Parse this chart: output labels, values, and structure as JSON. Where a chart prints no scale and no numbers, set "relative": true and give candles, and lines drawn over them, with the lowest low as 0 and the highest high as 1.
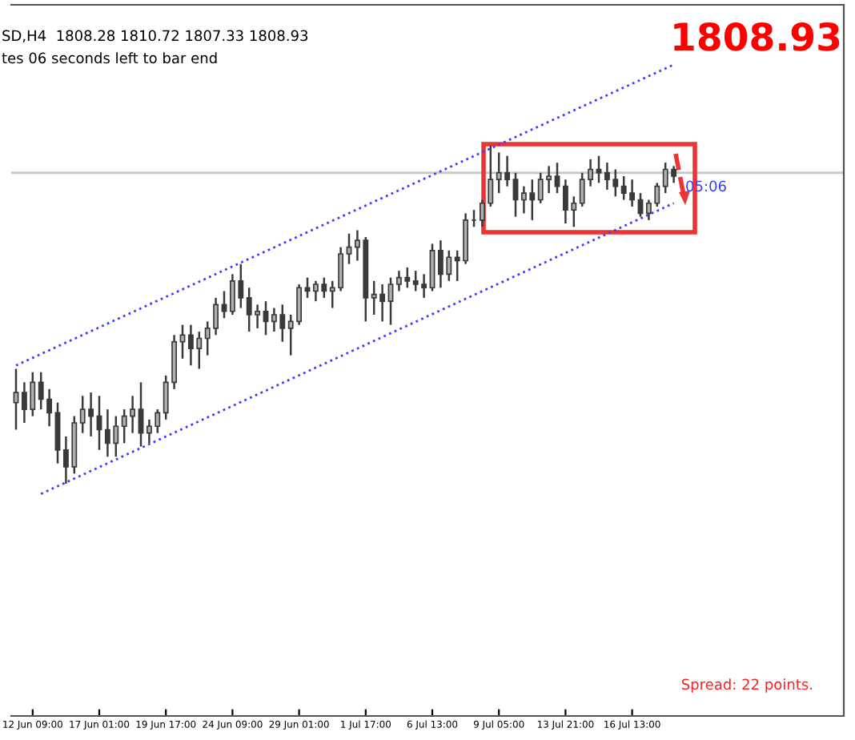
{
  "chart_data": {
    "type": "candlestick",
    "relative": true,
    "color": "#3a3a3a",
    "categories": [
      null,
      null,
      "12 Jun 09:00",
      null,
      null,
      null,
      null,
      null,
      null,
      null,
      "17 Jun 01:00",
      null,
      null,
      null,
      null,
      null,
      null,
      null,
      "19 Jun 17:00",
      null,
      null,
      null,
      null,
      null,
      null,
      null,
      "24 Jun 09:00",
      null,
      null,
      null,
      null,
      null,
      null,
      null,
      "29 Jun 01:00",
      null,
      null,
      null,
      null,
      null,
      null,
      null,
      "1 Jul 17:00",
      null,
      null,
      null,
      null,
      null,
      null,
      null,
      "6 Jul 13:00",
      null,
      null,
      null,
      null,
      null,
      null,
      null,
      "9 Jul 05:00",
      null,
      null,
      null,
      null,
      null,
      null,
      null,
      "13 Jul 21:00",
      null,
      null,
      null,
      null,
      null,
      null,
      null,
      "16 Jul 13:00",
      null,
      null,
      null,
      null,
      null
    ],
    "ohlc": [
      [
        0.24,
        0.34,
        0.16,
        0.27
      ],
      [
        0.27,
        0.3,
        0.18,
        0.22
      ],
      [
        0.22,
        0.33,
        0.2,
        0.3
      ],
      [
        0.3,
        0.33,
        0.22,
        0.25
      ],
      [
        0.25,
        0.28,
        0.17,
        0.21
      ],
      [
        0.21,
        0.24,
        0.06,
        0.1
      ],
      [
        0.1,
        0.14,
        0.0,
        0.05
      ],
      [
        0.05,
        0.2,
        0.03,
        0.18
      ],
      [
        0.18,
        0.26,
        0.15,
        0.22
      ],
      [
        0.22,
        0.27,
        0.14,
        0.2
      ],
      [
        0.2,
        0.26,
        0.1,
        0.16
      ],
      [
        0.16,
        0.22,
        0.08,
        0.12
      ],
      [
        0.12,
        0.2,
        0.08,
        0.17
      ],
      [
        0.17,
        0.22,
        0.12,
        0.2
      ],
      [
        0.2,
        0.26,
        0.15,
        0.22
      ],
      [
        0.22,
        0.3,
        0.11,
        0.15
      ],
      [
        0.15,
        0.19,
        0.12,
        0.17
      ],
      [
        0.17,
        0.22,
        0.15,
        0.21
      ],
      [
        0.21,
        0.32,
        0.19,
        0.3
      ],
      [
        0.3,
        0.44,
        0.28,
        0.42
      ],
      [
        0.42,
        0.47,
        0.37,
        0.44
      ],
      [
        0.44,
        0.47,
        0.35,
        0.4
      ],
      [
        0.4,
        0.45,
        0.34,
        0.43
      ],
      [
        0.43,
        0.48,
        0.38,
        0.46
      ],
      [
        0.46,
        0.55,
        0.44,
        0.53
      ],
      [
        0.53,
        0.57,
        0.49,
        0.51
      ],
      [
        0.51,
        0.62,
        0.5,
        0.6
      ],
      [
        0.6,
        0.65,
        0.52,
        0.55
      ],
      [
        0.55,
        0.58,
        0.45,
        0.5
      ],
      [
        0.5,
        0.53,
        0.46,
        0.51
      ],
      [
        0.51,
        0.54,
        0.44,
        0.48
      ],
      [
        0.48,
        0.52,
        0.45,
        0.5
      ],
      [
        0.5,
        0.53,
        0.42,
        0.46
      ],
      [
        0.46,
        0.5,
        0.38,
        0.48
      ],
      [
        0.48,
        0.59,
        0.47,
        0.58
      ],
      [
        0.58,
        0.61,
        0.55,
        0.57
      ],
      [
        0.57,
        0.6,
        0.54,
        0.59
      ],
      [
        0.59,
        0.61,
        0.55,
        0.57
      ],
      [
        0.57,
        0.6,
        0.52,
        0.58
      ],
      [
        0.58,
        0.7,
        0.57,
        0.68
      ],
      [
        0.68,
        0.74,
        0.65,
        0.7
      ],
      [
        0.7,
        0.75,
        0.66,
        0.72
      ],
      [
        0.72,
        0.73,
        0.48,
        0.55
      ],
      [
        0.55,
        0.6,
        0.5,
        0.56
      ],
      [
        0.56,
        0.59,
        0.48,
        0.54
      ],
      [
        0.54,
        0.61,
        0.47,
        0.59
      ],
      [
        0.59,
        0.63,
        0.57,
        0.61
      ],
      [
        0.61,
        0.64,
        0.58,
        0.6
      ],
      [
        0.6,
        0.63,
        0.57,
        0.59
      ],
      [
        0.59,
        0.62,
        0.55,
        0.58
      ],
      [
        0.58,
        0.71,
        0.57,
        0.69
      ],
      [
        0.69,
        0.72,
        0.58,
        0.62
      ],
      [
        0.62,
        0.69,
        0.6,
        0.67
      ],
      [
        0.67,
        0.69,
        0.6,
        0.66
      ],
      [
        0.66,
        0.8,
        0.65,
        0.78
      ],
      [
        0.78,
        0.81,
        0.76,
        0.78
      ],
      [
        0.78,
        0.84,
        0.76,
        0.83
      ],
      [
        0.83,
        1.0,
        0.82,
        0.9
      ],
      [
        0.9,
        0.98,
        0.86,
        0.92
      ],
      [
        0.92,
        0.97,
        0.88,
        0.9
      ],
      [
        0.9,
        0.92,
        0.79,
        0.84
      ],
      [
        0.84,
        0.88,
        0.8,
        0.86
      ],
      [
        0.86,
        0.9,
        0.78,
        0.84
      ],
      [
        0.84,
        0.92,
        0.83,
        0.9
      ],
      [
        0.9,
        0.94,
        0.86,
        0.91
      ],
      [
        0.91,
        0.95,
        0.86,
        0.88
      ],
      [
        0.88,
        0.9,
        0.77,
        0.81
      ],
      [
        0.81,
        0.85,
        0.76,
        0.83
      ],
      [
        0.83,
        0.92,
        0.82,
        0.9
      ],
      [
        0.9,
        0.96,
        0.88,
        0.93
      ],
      [
        0.93,
        0.97,
        0.89,
        0.92
      ],
      [
        0.92,
        0.95,
        0.87,
        0.9
      ],
      [
        0.9,
        0.93,
        0.85,
        0.88
      ],
      [
        0.88,
        0.91,
        0.84,
        0.86
      ],
      [
        0.86,
        0.9,
        0.82,
        0.84
      ],
      [
        0.84,
        0.86,
        0.79,
        0.8
      ],
      [
        0.8,
        0.84,
        0.78,
        0.83
      ],
      [
        0.83,
        0.89,
        0.82,
        0.88
      ],
      [
        0.88,
        0.95,
        0.86,
        0.93
      ],
      [
        0.93,
        0.94,
        0.89,
        0.91
      ]
    ],
    "series": [
      {
        "type": "line",
        "color": "#3c3cff",
        "line_style": "dotted",
        "values": [
          0.35,
          null,
          null,
          null,
          null,
          null,
          null,
          null,
          null,
          null,
          null,
          null,
          null,
          null,
          null,
          null,
          null,
          null,
          null,
          null,
          null,
          null,
          null,
          null,
          null,
          null,
          null,
          null,
          null,
          null,
          null,
          null,
          null,
          null,
          null,
          null,
          null,
          null,
          null,
          null,
          null,
          null,
          null,
          null,
          null,
          null,
          null,
          null,
          null,
          null,
          null,
          null,
          null,
          null,
          null,
          null,
          null,
          null,
          null,
          null,
          null,
          null,
          null,
          null,
          null,
          null,
          null,
          null,
          null,
          null,
          null,
          null,
          null,
          null,
          null,
          null,
          null,
          null,
          null,
          1.24
        ]
      },
      {
        "type": "line",
        "color": "#3c3cff",
        "line_style": "dotted",
        "values": [
          null,
          null,
          null,
          -0.03,
          null,
          null,
          null,
          null,
          null,
          null,
          null,
          null,
          null,
          null,
          null,
          null,
          null,
          null,
          null,
          null,
          null,
          null,
          null,
          null,
          null,
          null,
          null,
          null,
          null,
          null,
          null,
          null,
          null,
          null,
          null,
          null,
          null,
          null,
          null,
          null,
          null,
          null,
          null,
          null,
          null,
          null,
          null,
          null,
          null,
          null,
          null,
          null,
          null,
          null,
          null,
          null,
          null,
          null,
          null,
          null,
          null,
          null,
          null,
          null,
          null,
          null,
          null,
          null,
          null,
          null,
          null,
          null,
          null,
          null,
          null,
          null,
          null,
          null,
          null,
          0.83
        ]
      }
    ],
    "ref_lines": [
      {
        "axis": "y",
        "value": 0.92,
        "color": "#c8c8c8"
      }
    ],
    "annotations": [
      "SD,H4  1808.28 1810.72 1807.33 1808.93",
      "tes 06 seconds left to bar end",
      "1808.93",
      "05:06",
      "Spread: 22 points."
    ],
    "grid": false,
    "legend": false
  }
}
